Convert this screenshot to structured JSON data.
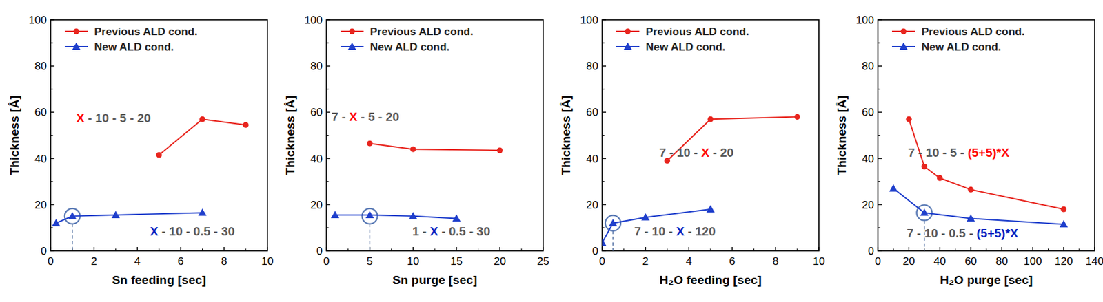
{
  "chart_data": [
    {
      "type": "line",
      "x_label": "Sn feeding [sec]",
      "y_label": "Thickness [Å]",
      "xlim": [
        0,
        10
      ],
      "xticks": [
        0,
        2,
        4,
        6,
        8,
        10
      ],
      "ylim": [
        0,
        100
      ],
      "yticks": [
        0,
        20,
        40,
        60,
        80,
        100
      ],
      "legend": "top-left",
      "series": [
        {
          "name": "Previous ALD cond.",
          "color": "#e8251e",
          "marker": "circle",
          "x": [
            5,
            7,
            9
          ],
          "values": [
            41.5,
            57,
            54.5
          ]
        },
        {
          "name": "New ALD cond.",
          "color": "#1f3fcc",
          "marker": "triangle",
          "x": [
            0.25,
            1,
            3,
            7
          ],
          "values": [
            12,
            15,
            15.5,
            16.5
          ]
        }
      ],
      "annotations": [
        {
          "segments": [
            {
              "text": "X",
              "color": "#ff0000"
            },
            {
              "text": " - 10 - 5 - 20",
              "color": "#595959"
            }
          ]
        },
        {
          "segments": [
            {
              "text": "X",
              "color": "#0020c0"
            },
            {
              "text": " - 10 - 0.5 - 30",
              "color": "#595959"
            }
          ]
        }
      ],
      "highlight": {
        "x": 1,
        "y": 15
      }
    },
    {
      "type": "line",
      "x_label": "Sn purge [sec]",
      "y_label": "Thickness [Å]",
      "xlim": [
        0,
        25
      ],
      "xticks": [
        0,
        5,
        10,
        15,
        20,
        25
      ],
      "ylim": [
        0,
        100
      ],
      "yticks": [
        0,
        20,
        40,
        60,
        80,
        100
      ],
      "legend": "top-left",
      "series": [
        {
          "name": "Previous ALD cond.",
          "color": "#e8251e",
          "marker": "circle",
          "x": [
            5,
            10,
            20
          ],
          "values": [
            46.5,
            44,
            43.5
          ]
        },
        {
          "name": "New ALD cond.",
          "color": "#1f3fcc",
          "marker": "triangle",
          "x": [
            1,
            5,
            10,
            15
          ],
          "values": [
            15.5,
            15.5,
            15,
            14
          ]
        }
      ],
      "annotations": [
        {
          "segments": [
            {
              "text": "7 - ",
              "color": "#595959"
            },
            {
              "text": "X",
              "color": "#ff0000"
            },
            {
              "text": " - 5 - 20",
              "color": "#595959"
            }
          ]
        },
        {
          "segments": [
            {
              "text": "1 - ",
              "color": "#595959"
            },
            {
              "text": "X",
              "color": "#0020c0"
            },
            {
              "text": " - 0.5 - 30",
              "color": "#595959"
            }
          ]
        }
      ],
      "highlight": {
        "x": 5,
        "y": 15
      }
    },
    {
      "type": "line",
      "x_label": "H₂O feeding [sec]",
      "y_label": "Thickness [Å]",
      "xlim": [
        0,
        10
      ],
      "xticks": [
        0,
        2,
        4,
        6,
        8,
        10
      ],
      "ylim": [
        0,
        100
      ],
      "yticks": [
        0,
        20,
        40,
        60,
        80,
        100
      ],
      "legend": "top-left",
      "series": [
        {
          "name": "Previous ALD cond.",
          "color": "#e8251e",
          "marker": "circle",
          "x": [
            3,
            5,
            9
          ],
          "values": [
            39,
            57,
            58
          ]
        },
        {
          "name": "New ALD cond.",
          "color": "#1f3fcc",
          "marker": "triangle",
          "x": [
            0,
            0.5,
            2,
            5
          ],
          "values": [
            3.5,
            12,
            14.5,
            18
          ]
        }
      ],
      "annotations": [
        {
          "segments": [
            {
              "text": "7 - 10 - ",
              "color": "#595959"
            },
            {
              "text": "X",
              "color": "#ff0000"
            },
            {
              "text": " - 20",
              "color": "#595959"
            }
          ]
        },
        {
          "segments": [
            {
              "text": "7 - 10 - ",
              "color": "#595959"
            },
            {
              "text": "X",
              "color": "#0020c0"
            },
            {
              "text": " - 120",
              "color": "#595959"
            }
          ]
        }
      ],
      "highlight": {
        "x": 0.5,
        "y": 12
      }
    },
    {
      "type": "line",
      "x_label": "H₂O purge [sec]",
      "y_label": "Thickness [Å]",
      "xlim": [
        0,
        140
      ],
      "xticks": [
        0,
        20,
        40,
        60,
        80,
        100,
        120,
        140
      ],
      "ylim": [
        0,
        100
      ],
      "yticks": [
        0,
        20,
        40,
        60,
        80,
        100
      ],
      "legend": "top-left",
      "series": [
        {
          "name": "Previous ALD cond.",
          "color": "#e8251e",
          "marker": "circle",
          "x": [
            20,
            30,
            40,
            60,
            120
          ],
          "values": [
            57,
            36.5,
            31.5,
            26.5,
            18
          ]
        },
        {
          "name": "New ALD cond.",
          "color": "#1f3fcc",
          "marker": "triangle",
          "x": [
            10,
            30,
            60,
            120
          ],
          "values": [
            27,
            16.5,
            14,
            11.5
          ]
        }
      ],
      "annotations": [
        {
          "segments": [
            {
              "text": "7 - 10 - 5 - ",
              "color": "#595959"
            },
            {
              "text": "(5+5)*X",
              "color": "#ff0000"
            }
          ]
        },
        {
          "segments": [
            {
              "text": "7 - 10 - 0.5 - ",
              "color": "#595959"
            },
            {
              "text": "(5+5)*X",
              "color": "#0020c0"
            }
          ]
        }
      ],
      "highlight": {
        "x": 30,
        "y": 16.5
      }
    }
  ]
}
